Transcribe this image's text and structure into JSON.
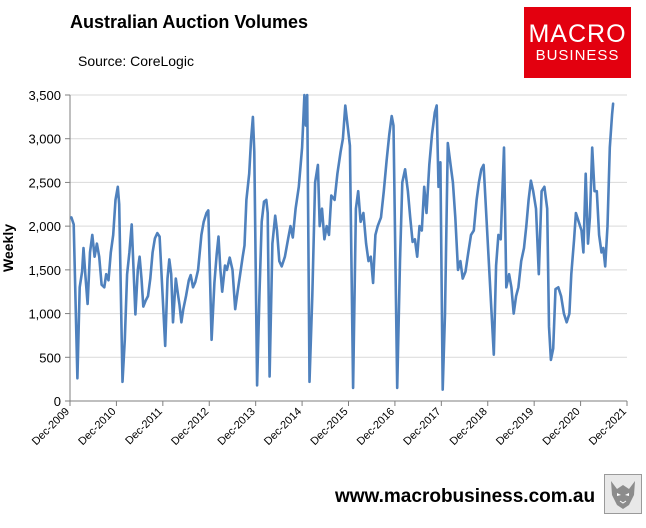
{
  "header": {
    "title": "Australian Auction Volumes",
    "source": "Source: CoreLogic"
  },
  "logo": {
    "line1": "MACRO",
    "line2": "BUSINESS",
    "color": "#e3000f"
  },
  "footer": {
    "url": "www.macrobusiness.com.au",
    "emblem_icon": "wolf-emblem-icon"
  },
  "chart_data": {
    "type": "line",
    "title": "Australian Auction Volumes",
    "xlabel": "",
    "ylabel": "Weekly",
    "ylim": [
      0,
      3500
    ],
    "y_ticks": [
      0,
      500,
      1000,
      1500,
      2000,
      2500,
      3000,
      3500
    ],
    "y_tick_labels": [
      "0",
      "500",
      "1,000",
      "1,500",
      "2,000",
      "2,500",
      "3,000",
      "3,500"
    ],
    "x_tick_labels": [
      "Dec-2009",
      "Dec-2010",
      "Dec-2011",
      "Dec-2012",
      "Dec-2013",
      "Dec-2014",
      "Dec-2015",
      "Dec-2016",
      "Dec-2017",
      "Dec-2018",
      "Dec-2019",
      "Dec-2020",
      "Dec-2021"
    ],
    "grid": true,
    "legend": "none",
    "line_color": "#4f81bd",
    "series": [
      {
        "values": [
          [
            2009.95,
            2100
          ],
          [
            2010.0,
            2020
          ],
          [
            2010.08,
            260
          ],
          [
            2010.13,
            1300
          ],
          [
            2010.18,
            1480
          ],
          [
            2010.21,
            1750
          ],
          [
            2010.25,
            1450
          ],
          [
            2010.3,
            1110
          ],
          [
            2010.35,
            1700
          ],
          [
            2010.4,
            1900
          ],
          [
            2010.45,
            1650
          ],
          [
            2010.5,
            1800
          ],
          [
            2010.55,
            1650
          ],
          [
            2010.6,
            1330
          ],
          [
            2010.66,
            1300
          ],
          [
            2010.7,
            1450
          ],
          [
            2010.75,
            1380
          ],
          [
            2010.8,
            1700
          ],
          [
            2010.85,
            1900
          ],
          [
            2010.9,
            2300
          ],
          [
            2010.95,
            2450
          ],
          [
            2010.98,
            2250
          ],
          [
            2011.05,
            220
          ],
          [
            2011.1,
            700
          ],
          [
            2011.15,
            1450
          ],
          [
            2011.2,
            1700
          ],
          [
            2011.25,
            2020
          ],
          [
            2011.3,
            1350
          ],
          [
            2011.33,
            990
          ],
          [
            2011.38,
            1500
          ],
          [
            2011.42,
            1650
          ],
          [
            2011.46,
            1400
          ],
          [
            2011.5,
            1080
          ],
          [
            2011.55,
            1150
          ],
          [
            2011.6,
            1200
          ],
          [
            2011.65,
            1400
          ],
          [
            2011.7,
            1700
          ],
          [
            2011.75,
            1860
          ],
          [
            2011.8,
            1920
          ],
          [
            2011.85,
            1880
          ],
          [
            2011.97,
            630
          ],
          [
            2012.02,
            1400
          ],
          [
            2012.06,
            1620
          ],
          [
            2012.1,
            1450
          ],
          [
            2012.14,
            900
          ],
          [
            2012.2,
            1400
          ],
          [
            2012.25,
            1200
          ],
          [
            2012.28,
            1100
          ],
          [
            2012.32,
            900
          ],
          [
            2012.36,
            1050
          ],
          [
            2012.42,
            1200
          ],
          [
            2012.48,
            1380
          ],
          [
            2012.52,
            1440
          ],
          [
            2012.57,
            1300
          ],
          [
            2012.62,
            1360
          ],
          [
            2012.68,
            1500
          ],
          [
            2012.75,
            1900
          ],
          [
            2012.8,
            2050
          ],
          [
            2012.86,
            2150
          ],
          [
            2012.9,
            2180
          ],
          [
            2012.97,
            700
          ],
          [
            2013.03,
            1350
          ],
          [
            2013.08,
            1680
          ],
          [
            2013.12,
            1880
          ],
          [
            2013.16,
            1500
          ],
          [
            2013.2,
            1250
          ],
          [
            2013.26,
            1550
          ],
          [
            2013.3,
            1500
          ],
          [
            2013.36,
            1640
          ],
          [
            2013.42,
            1500
          ],
          [
            2013.48,
            1050
          ],
          [
            2013.53,
            1250
          ],
          [
            2013.58,
            1430
          ],
          [
            2013.64,
            1650
          ],
          [
            2013.68,
            1780
          ],
          [
            2013.72,
            2300
          ],
          [
            2013.78,
            2600
          ],
          [
            2013.82,
            2980
          ],
          [
            2013.86,
            3250
          ],
          [
            2013.89,
            2850
          ],
          [
            2013.95,
            180
          ],
          [
            2014.0,
            1200
          ],
          [
            2014.05,
            2050
          ],
          [
            2014.1,
            2280
          ],
          [
            2014.15,
            2300
          ],
          [
            2014.18,
            2150
          ],
          [
            2014.22,
            280
          ],
          [
            2014.28,
            1800
          ],
          [
            2014.34,
            2120
          ],
          [
            2014.38,
            1950
          ],
          [
            2014.43,
            1600
          ],
          [
            2014.48,
            1540
          ],
          [
            2014.55,
            1650
          ],
          [
            2014.62,
            1860
          ],
          [
            2014.67,
            2000
          ],
          [
            2014.72,
            1870
          ],
          [
            2014.78,
            2200
          ],
          [
            2014.85,
            2450
          ],
          [
            2014.92,
            2900
          ],
          [
            2014.97,
            3500
          ],
          [
            2015.0,
            3150
          ],
          [
            2015.03,
            3500
          ],
          [
            2015.08,
            220
          ],
          [
            2015.14,
            1200
          ],
          [
            2015.2,
            2500
          ],
          [
            2015.26,
            2700
          ],
          [
            2015.3,
            2000
          ],
          [
            2015.35,
            2200
          ],
          [
            2015.4,
            1850
          ],
          [
            2015.45,
            2000
          ],
          [
            2015.5,
            1900
          ],
          [
            2015.55,
            2350
          ],
          [
            2015.62,
            2300
          ],
          [
            2015.68,
            2600
          ],
          [
            2015.75,
            2850
          ],
          [
            2015.8,
            3000
          ],
          [
            2015.85,
            3380
          ],
          [
            2015.9,
            3150
          ],
          [
            2015.95,
            2920
          ],
          [
            2016.02,
            150
          ],
          [
            2016.08,
            2200
          ],
          [
            2016.13,
            2400
          ],
          [
            2016.18,
            2050
          ],
          [
            2016.24,
            2150
          ],
          [
            2016.3,
            1800
          ],
          [
            2016.35,
            1600
          ],
          [
            2016.4,
            1650
          ],
          [
            2016.45,
            1350
          ],
          [
            2016.5,
            1900
          ],
          [
            2016.55,
            2000
          ],
          [
            2016.62,
            2100
          ],
          [
            2016.68,
            2400
          ],
          [
            2016.74,
            2750
          ],
          [
            2016.8,
            3050
          ],
          [
            2016.85,
            3260
          ],
          [
            2016.89,
            3150
          ],
          [
            2016.97,
            150
          ],
          [
            2017.03,
            1600
          ],
          [
            2017.08,
            2500
          ],
          [
            2017.14,
            2650
          ],
          [
            2017.2,
            2400
          ],
          [
            2017.25,
            2100
          ],
          [
            2017.3,
            1820
          ],
          [
            2017.35,
            1850
          ],
          [
            2017.4,
            1650
          ],
          [
            2017.45,
            2000
          ],
          [
            2017.5,
            1950
          ],
          [
            2017.55,
            2450
          ],
          [
            2017.6,
            2150
          ],
          [
            2017.66,
            2700
          ],
          [
            2017.72,
            3050
          ],
          [
            2017.78,
            3300
          ],
          [
            2017.82,
            3380
          ],
          [
            2017.86,
            2450
          ],
          [
            2017.9,
            2730
          ],
          [
            2017.95,
            130
          ],
          [
            2018.0,
            1000
          ],
          [
            2018.06,
            2950
          ],
          [
            2018.12,
            2700
          ],
          [
            2018.17,
            2500
          ],
          [
            2018.22,
            2100
          ],
          [
            2018.28,
            1500
          ],
          [
            2018.33,
            1600
          ],
          [
            2018.38,
            1400
          ],
          [
            2018.44,
            1480
          ],
          [
            2018.5,
            1700
          ],
          [
            2018.56,
            1900
          ],
          [
            2018.62,
            1950
          ],
          [
            2018.68,
            2300
          ],
          [
            2018.73,
            2500
          ],
          [
            2018.78,
            2650
          ],
          [
            2018.83,
            2700
          ],
          [
            2019.05,
            530
          ],
          [
            2019.1,
            1550
          ],
          [
            2019.15,
            1900
          ],
          [
            2019.2,
            1850
          ],
          [
            2019.27,
            2900
          ],
          [
            2019.32,
            1300
          ],
          [
            2019.38,
            1450
          ],
          [
            2019.43,
            1300
          ],
          [
            2019.48,
            1000
          ],
          [
            2019.53,
            1200
          ],
          [
            2019.58,
            1300
          ],
          [
            2019.64,
            1600
          ],
          [
            2019.7,
            1750
          ],
          [
            2019.75,
            2000
          ],
          [
            2019.8,
            2300
          ],
          [
            2019.85,
            2520
          ],
          [
            2019.9,
            2400
          ],
          [
            2019.96,
            2200
          ],
          [
            2020.02,
            1450
          ],
          [
            2020.08,
            2400
          ],
          [
            2020.14,
            2450
          ],
          [
            2020.2,
            2200
          ],
          [
            2020.24,
            850
          ],
          [
            2020.28,
            470
          ],
          [
            2020.33,
            600
          ],
          [
            2020.38,
            1280
          ],
          [
            2020.44,
            1300
          ],
          [
            2020.5,
            1200
          ],
          [
            2020.56,
            1000
          ],
          [
            2020.62,
            900
          ],
          [
            2020.68,
            1000
          ],
          [
            2020.72,
            1450
          ],
          [
            2020.78,
            1850
          ],
          [
            2020.82,
            2150
          ],
          [
            2020.88,
            2050
          ],
          [
            2020.94,
            1950
          ],
          [
            2020.98,
            1700
          ],
          [
            2021.03,
            2600
          ],
          [
            2021.08,
            1800
          ],
          [
            2021.12,
            2100
          ],
          [
            2021.17,
            2900
          ],
          [
            2021.22,
            2400
          ],
          [
            2021.27,
            2400
          ],
          [
            2021.32,
            1900
          ],
          [
            2021.37,
            1700
          ],
          [
            2021.41,
            1750
          ],
          [
            2021.45,
            1540
          ],
          [
            2021.5,
            2000
          ],
          [
            2021.55,
            2900
          ],
          [
            2021.6,
            3280
          ],
          [
            2021.62,
            3400
          ]
        ]
      }
    ]
  }
}
